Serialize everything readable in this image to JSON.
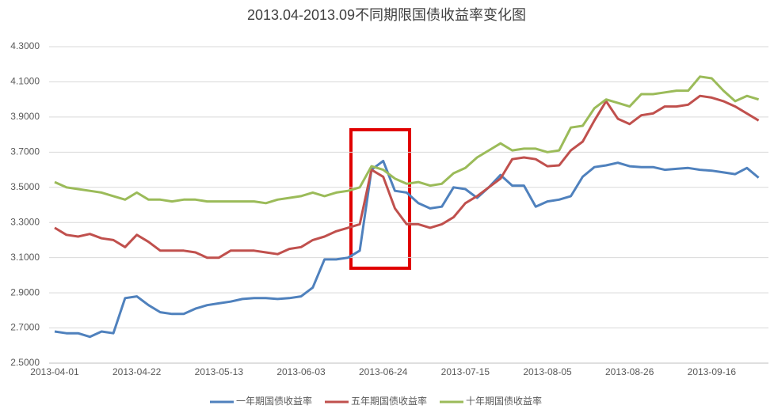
{
  "chart_data": {
    "type": "line",
    "title": "2013.04-2013.09不同期限国债收益率变化图",
    "categories": [
      "2013-04-01",
      null,
      null,
      null,
      null,
      null,
      null,
      "2013-04-22",
      null,
      null,
      null,
      null,
      null,
      null,
      "2013-05-13",
      null,
      null,
      null,
      null,
      null,
      null,
      "2013-06-03",
      null,
      null,
      null,
      null,
      null,
      null,
      "2013-06-24",
      null,
      null,
      null,
      null,
      null,
      null,
      "2013-07-15",
      null,
      null,
      null,
      null,
      null,
      null,
      "2013-08-05",
      null,
      null,
      null,
      null,
      null,
      null,
      "2013-08-26",
      null,
      null,
      null,
      null,
      null,
      null,
      "2013-09-16",
      null,
      null,
      null,
      null
    ],
    "series": [
      {
        "name": "一年期国债收益率",
        "color": "#4f81bd",
        "values": [
          2.68,
          2.67,
          2.67,
          2.65,
          2.68,
          2.67,
          2.87,
          2.88,
          2.83,
          2.79,
          2.78,
          2.78,
          2.81,
          2.83,
          2.84,
          2.85,
          2.865,
          2.87,
          2.87,
          2.865,
          2.87,
          2.88,
          2.93,
          3.09,
          3.09,
          3.1,
          3.14,
          3.6,
          3.65,
          3.48,
          3.47,
          3.41,
          3.38,
          3.39,
          3.5,
          3.49,
          3.44,
          3.5,
          3.57,
          3.51,
          3.51,
          3.39,
          3.42,
          3.43,
          3.45,
          3.56,
          3.615,
          3.625,
          3.64,
          3.62,
          3.615,
          3.615,
          3.6,
          3.605,
          3.61,
          3.6,
          3.595,
          3.585,
          3.575,
          3.61,
          3.555
        ]
      },
      {
        "name": "五年期国债收益率",
        "color": "#c0504d",
        "values": [
          3.27,
          3.23,
          3.22,
          3.235,
          3.21,
          3.2,
          3.16,
          3.23,
          3.19,
          3.14,
          3.14,
          3.14,
          3.13,
          3.1,
          3.1,
          3.14,
          3.14,
          3.14,
          3.13,
          3.12,
          3.15,
          3.16,
          3.2,
          3.22,
          3.25,
          3.27,
          3.29,
          3.6,
          3.56,
          3.38,
          3.29,
          3.29,
          3.27,
          3.29,
          3.33,
          3.41,
          3.45,
          3.5,
          3.55,
          3.66,
          3.67,
          3.66,
          3.62,
          3.625,
          3.71,
          3.76,
          3.88,
          3.99,
          3.89,
          3.86,
          3.91,
          3.92,
          3.96,
          3.96,
          3.97,
          4.02,
          4.01,
          3.99,
          3.96,
          3.92,
          3.88
        ]
      },
      {
        "name": "十年期国债收益率",
        "color": "#9bbb59",
        "values": [
          3.53,
          3.5,
          3.49,
          3.48,
          3.47,
          3.45,
          3.43,
          3.47,
          3.43,
          3.43,
          3.42,
          3.43,
          3.43,
          3.42,
          3.42,
          3.42,
          3.42,
          3.42,
          3.41,
          3.43,
          3.44,
          3.45,
          3.47,
          3.45,
          3.47,
          3.48,
          3.5,
          3.62,
          3.6,
          3.55,
          3.52,
          3.53,
          3.51,
          3.52,
          3.58,
          3.61,
          3.67,
          3.71,
          3.75,
          3.71,
          3.72,
          3.72,
          3.7,
          3.71,
          3.84,
          3.85,
          3.95,
          4.0,
          3.98,
          3.96,
          4.03,
          4.03,
          4.04,
          4.05,
          4.05,
          4.13,
          4.12,
          4.05,
          3.99,
          4.02,
          4.0
        ]
      }
    ],
    "ylim": [
      2.5,
      4.3
    ],
    "yticks": [
      {
        "value": 2.5,
        "label": "2.5000"
      },
      {
        "value": 2.7,
        "label": "2.7000"
      },
      {
        "value": 2.9,
        "label": "2.9000"
      },
      {
        "value": 3.1,
        "label": "3.1000"
      },
      {
        "value": 3.3,
        "label": "3.3000"
      },
      {
        "value": 3.5,
        "label": "3.5000"
      },
      {
        "value": 3.7,
        "label": "3.7000"
      },
      {
        "value": 3.9,
        "label": "3.9000"
      },
      {
        "value": 4.1,
        "label": "4.1000"
      },
      {
        "value": 4.3,
        "label": "4.3000"
      }
    ],
    "grid": true,
    "legend": "bottom"
  }
}
